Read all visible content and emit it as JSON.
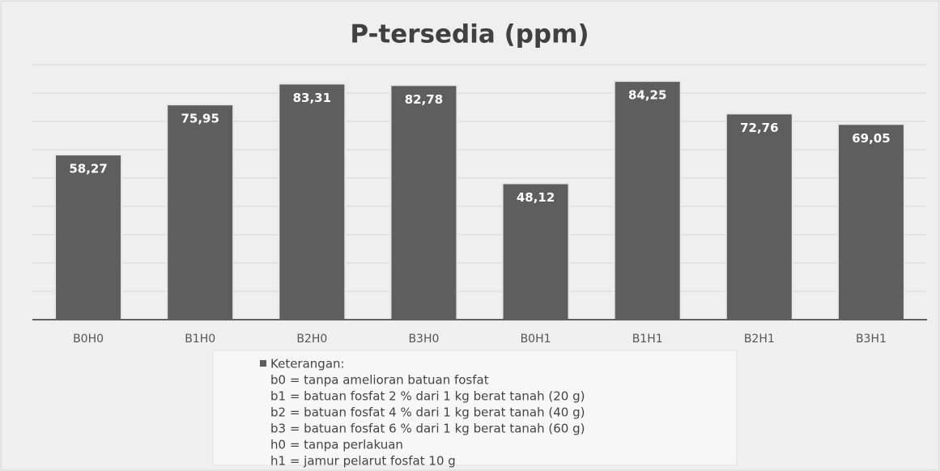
{
  "chart_data": {
    "type": "bar",
    "title": "P-tersedia (ppm)",
    "categories": [
      "B0H0",
      "B1H0",
      "B2H0",
      "B3H0",
      "B0H1",
      "B1H1",
      "B2H1",
      "B3H1"
    ],
    "series": [
      {
        "name": "Keterangan:",
        "color": "#5e5e5e",
        "values": [
          58.27,
          75.95,
          83.31,
          82.78,
          48.12,
          84.25,
          72.76,
          69.05
        ],
        "value_labels": [
          "58,27",
          "75,95",
          "83,31",
          "82,78",
          "48,12",
          "84,25",
          "72,76",
          "69,05"
        ]
      }
    ],
    "legend_notes": [
      "b0 = tanpa amelioran batuan fosfat",
      "b1 = batuan fosfat 2 % dari 1 kg berat tanah (20 g)",
      "b2 = batuan fosfat 4 % dari 1 kg berat tanah (40 g)",
      "b3 = batuan fosfat 6 % dari 1 kg berat tanah (60 g)",
      "h0 = tanpa perlakuan",
      "h1 = jamur pelarut fosfat 10 g"
    ],
    "ylim": [
      0,
      90
    ],
    "yticks": [
      0,
      10,
      20,
      30,
      40,
      50,
      60,
      70,
      80,
      90
    ],
    "grid": true,
    "legend": "bottom"
  }
}
